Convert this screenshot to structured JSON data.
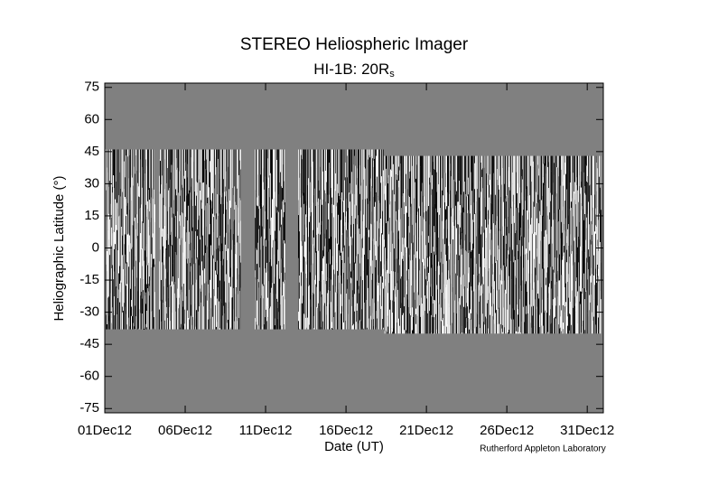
{
  "chart_data": {
    "type": "heatmap",
    "title": "STEREO Heliospheric Imager",
    "subtitle": "HI-1B: 20R",
    "subtitle_subscript": "s",
    "xlabel": "Date (UT)",
    "ylabel": "Heliographic Latitude (°)",
    "annotation": "Rutherford Appleton Laboratory",
    "xlim": [
      1,
      32
    ],
    "xticks": [
      {
        "value": 1,
        "label": "01Dec12"
      },
      {
        "value": 6,
        "label": "06Dec12"
      },
      {
        "value": 11,
        "label": "11Dec12"
      },
      {
        "value": 16,
        "label": "16Dec12"
      },
      {
        "value": 21,
        "label": "21Dec12"
      },
      {
        "value": 26,
        "label": "26Dec12"
      },
      {
        "value": 31,
        "label": "31Dec12"
      }
    ],
    "ylim": [
      -77,
      77
    ],
    "yticks": [
      -75,
      -60,
      -45,
      -30,
      -15,
      0,
      15,
      30,
      45,
      60,
      75
    ],
    "background_color": "#808080"
  }
}
